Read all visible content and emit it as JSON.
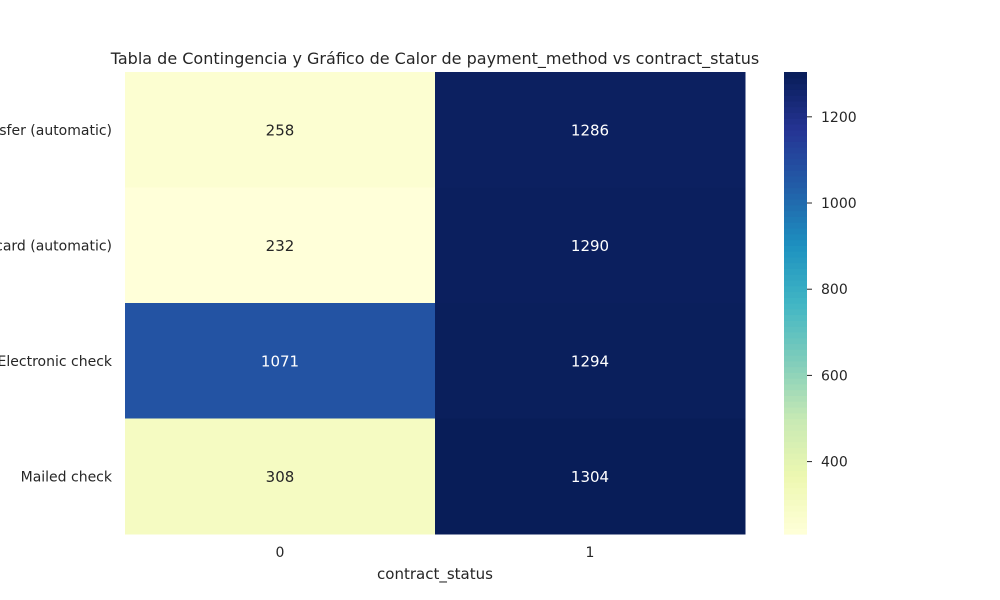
{
  "chart_data": {
    "type": "heatmap",
    "title": "Tabla de Contingencia y Gráfico de Calor de payment_method vs contract_status",
    "xlabel": "contract_status",
    "ylabel": "",
    "x_categories": [
      "0",
      "1"
    ],
    "y_categories": [
      "Bank transfer (automatic)",
      "Credit card (automatic)",
      "Electronic check",
      "Mailed check"
    ],
    "values": [
      [
        258,
        1286
      ],
      [
        232,
        1290
      ],
      [
        1071,
        1294
      ],
      [
        308,
        1304
      ]
    ],
    "colorbar": {
      "colormap": "YlGnBu",
      "vmin": 232,
      "vmax": 1304,
      "ticks": [
        400,
        600,
        800,
        1000,
        1200
      ],
      "tick_labels": [
        "400",
        "600",
        "800",
        "1000",
        "1200"
      ]
    },
    "annotate": true,
    "grid": false
  }
}
